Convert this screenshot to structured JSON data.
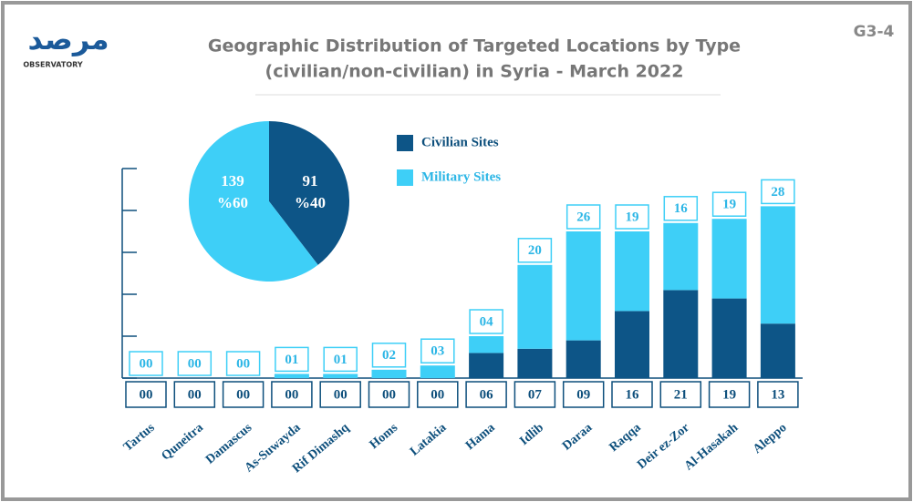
{
  "header": {
    "logo": "مرصد",
    "logo_sub": "OBSERVATORY",
    "code": "G3-4"
  },
  "chart_data": {
    "type": "stacked_bar",
    "title": [
      "Geographic Distribution of Targeted Locations by Type",
      "(civilian/non-civilian) in Syria - March 2022"
    ],
    "categories": [
      "Tartus",
      "Quneitra",
      "Damascus",
      "As-Suwayda",
      "Rif Dimashq",
      "Homs",
      "Latakia",
      "Hama",
      "Idlib",
      "Daraa",
      "Raqqa",
      "Deir ez-Zor",
      "Al-Hasakah",
      "Aleppo"
    ],
    "series": [
      {
        "name": "Civilian Sites",
        "color": "#0d5587",
        "values": [
          0,
          0,
          0,
          0,
          0,
          0,
          0,
          6,
          7,
          9,
          16,
          21,
          19,
          13
        ],
        "value_labels": [
          "00",
          "00",
          "00",
          "00",
          "00",
          "00",
          "00",
          "06",
          "07",
          "09",
          "16",
          "21",
          "19",
          "13"
        ]
      },
      {
        "name": "Military Sites",
        "color": "#3ecff7",
        "values": [
          0,
          0,
          0,
          1,
          1,
          2,
          3,
          4,
          20,
          26,
          19,
          16,
          19,
          28
        ],
        "value_labels": [
          "00",
          "00",
          "00",
          "01",
          "01",
          "02",
          "03",
          "04",
          "20",
          "26",
          "19",
          "16",
          "19",
          "28"
        ]
      }
    ],
    "ylim": [
      0,
      50
    ],
    "yticks": [
      0,
      10,
      20,
      30,
      40,
      50
    ],
    "pie": {
      "type": "pie",
      "values": [
        91,
        139
      ],
      "percents": [
        40,
        60
      ],
      "percent_labels": [
        "%40",
        "%60"
      ]
    }
  }
}
